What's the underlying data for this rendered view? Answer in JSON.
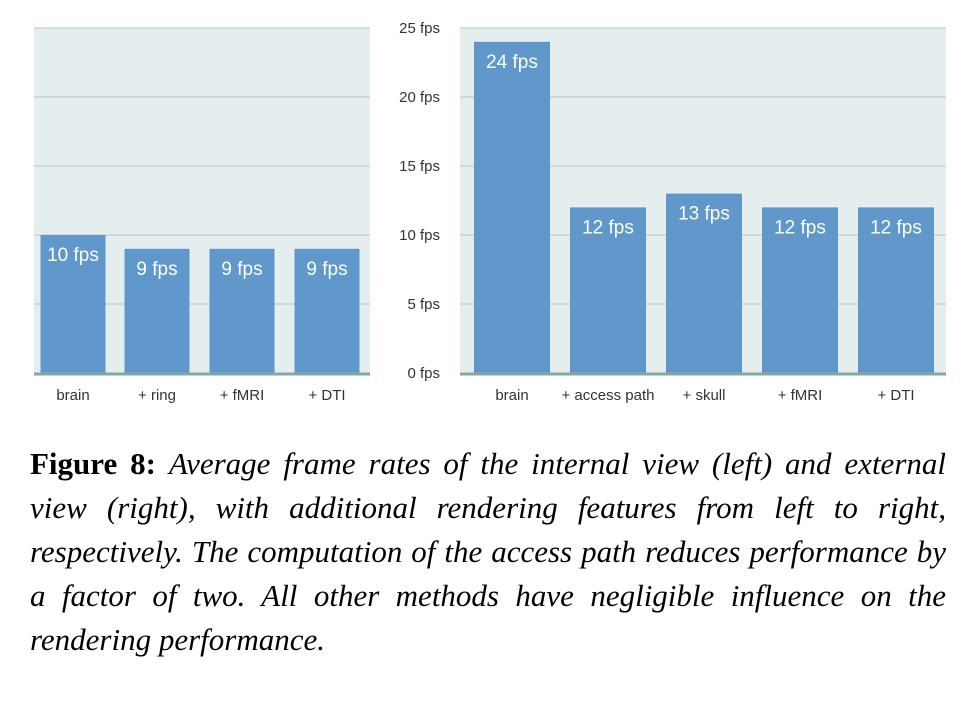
{
  "chart_data": [
    {
      "type": "bar",
      "categories": [
        "brain",
        "+ ring",
        "+ fMRI",
        "+ DTI"
      ],
      "values": [
        10,
        9,
        9,
        9
      ],
      "data_labels": [
        "10 fps",
        "9 fps",
        "9 fps",
        "9 fps"
      ],
      "ylim": [
        0,
        25
      ],
      "grid": true
    },
    {
      "type": "bar",
      "categories": [
        "brain",
        "+ access path",
        "+ skull",
        "+ fMRI",
        "+ DTI"
      ],
      "values": [
        24,
        12,
        13,
        12,
        12
      ],
      "data_labels": [
        "24 fps",
        "12 fps",
        "13 fps",
        "12 fps",
        "12 fps"
      ],
      "ylim": [
        0,
        25
      ],
      "grid": true
    }
  ],
  "y_ticks": [
    "0 fps",
    "5 fps",
    "10 fps",
    "15 fps",
    "20 fps",
    "25 fps"
  ],
  "caption": {
    "label": "Figure 8:",
    "text": "Average frame rates of the internal view (left) and external view (right), with additional rendering features from left to right, respectively. The computation of the access path reduces performance by a factor of two. All other methods have negligible influence on the rendering performance."
  },
  "colors": {
    "bar": "#6098cc",
    "plot_background": "#e4eeee",
    "grid": "#b9c6c6",
    "baseline": "#82a9a6"
  }
}
